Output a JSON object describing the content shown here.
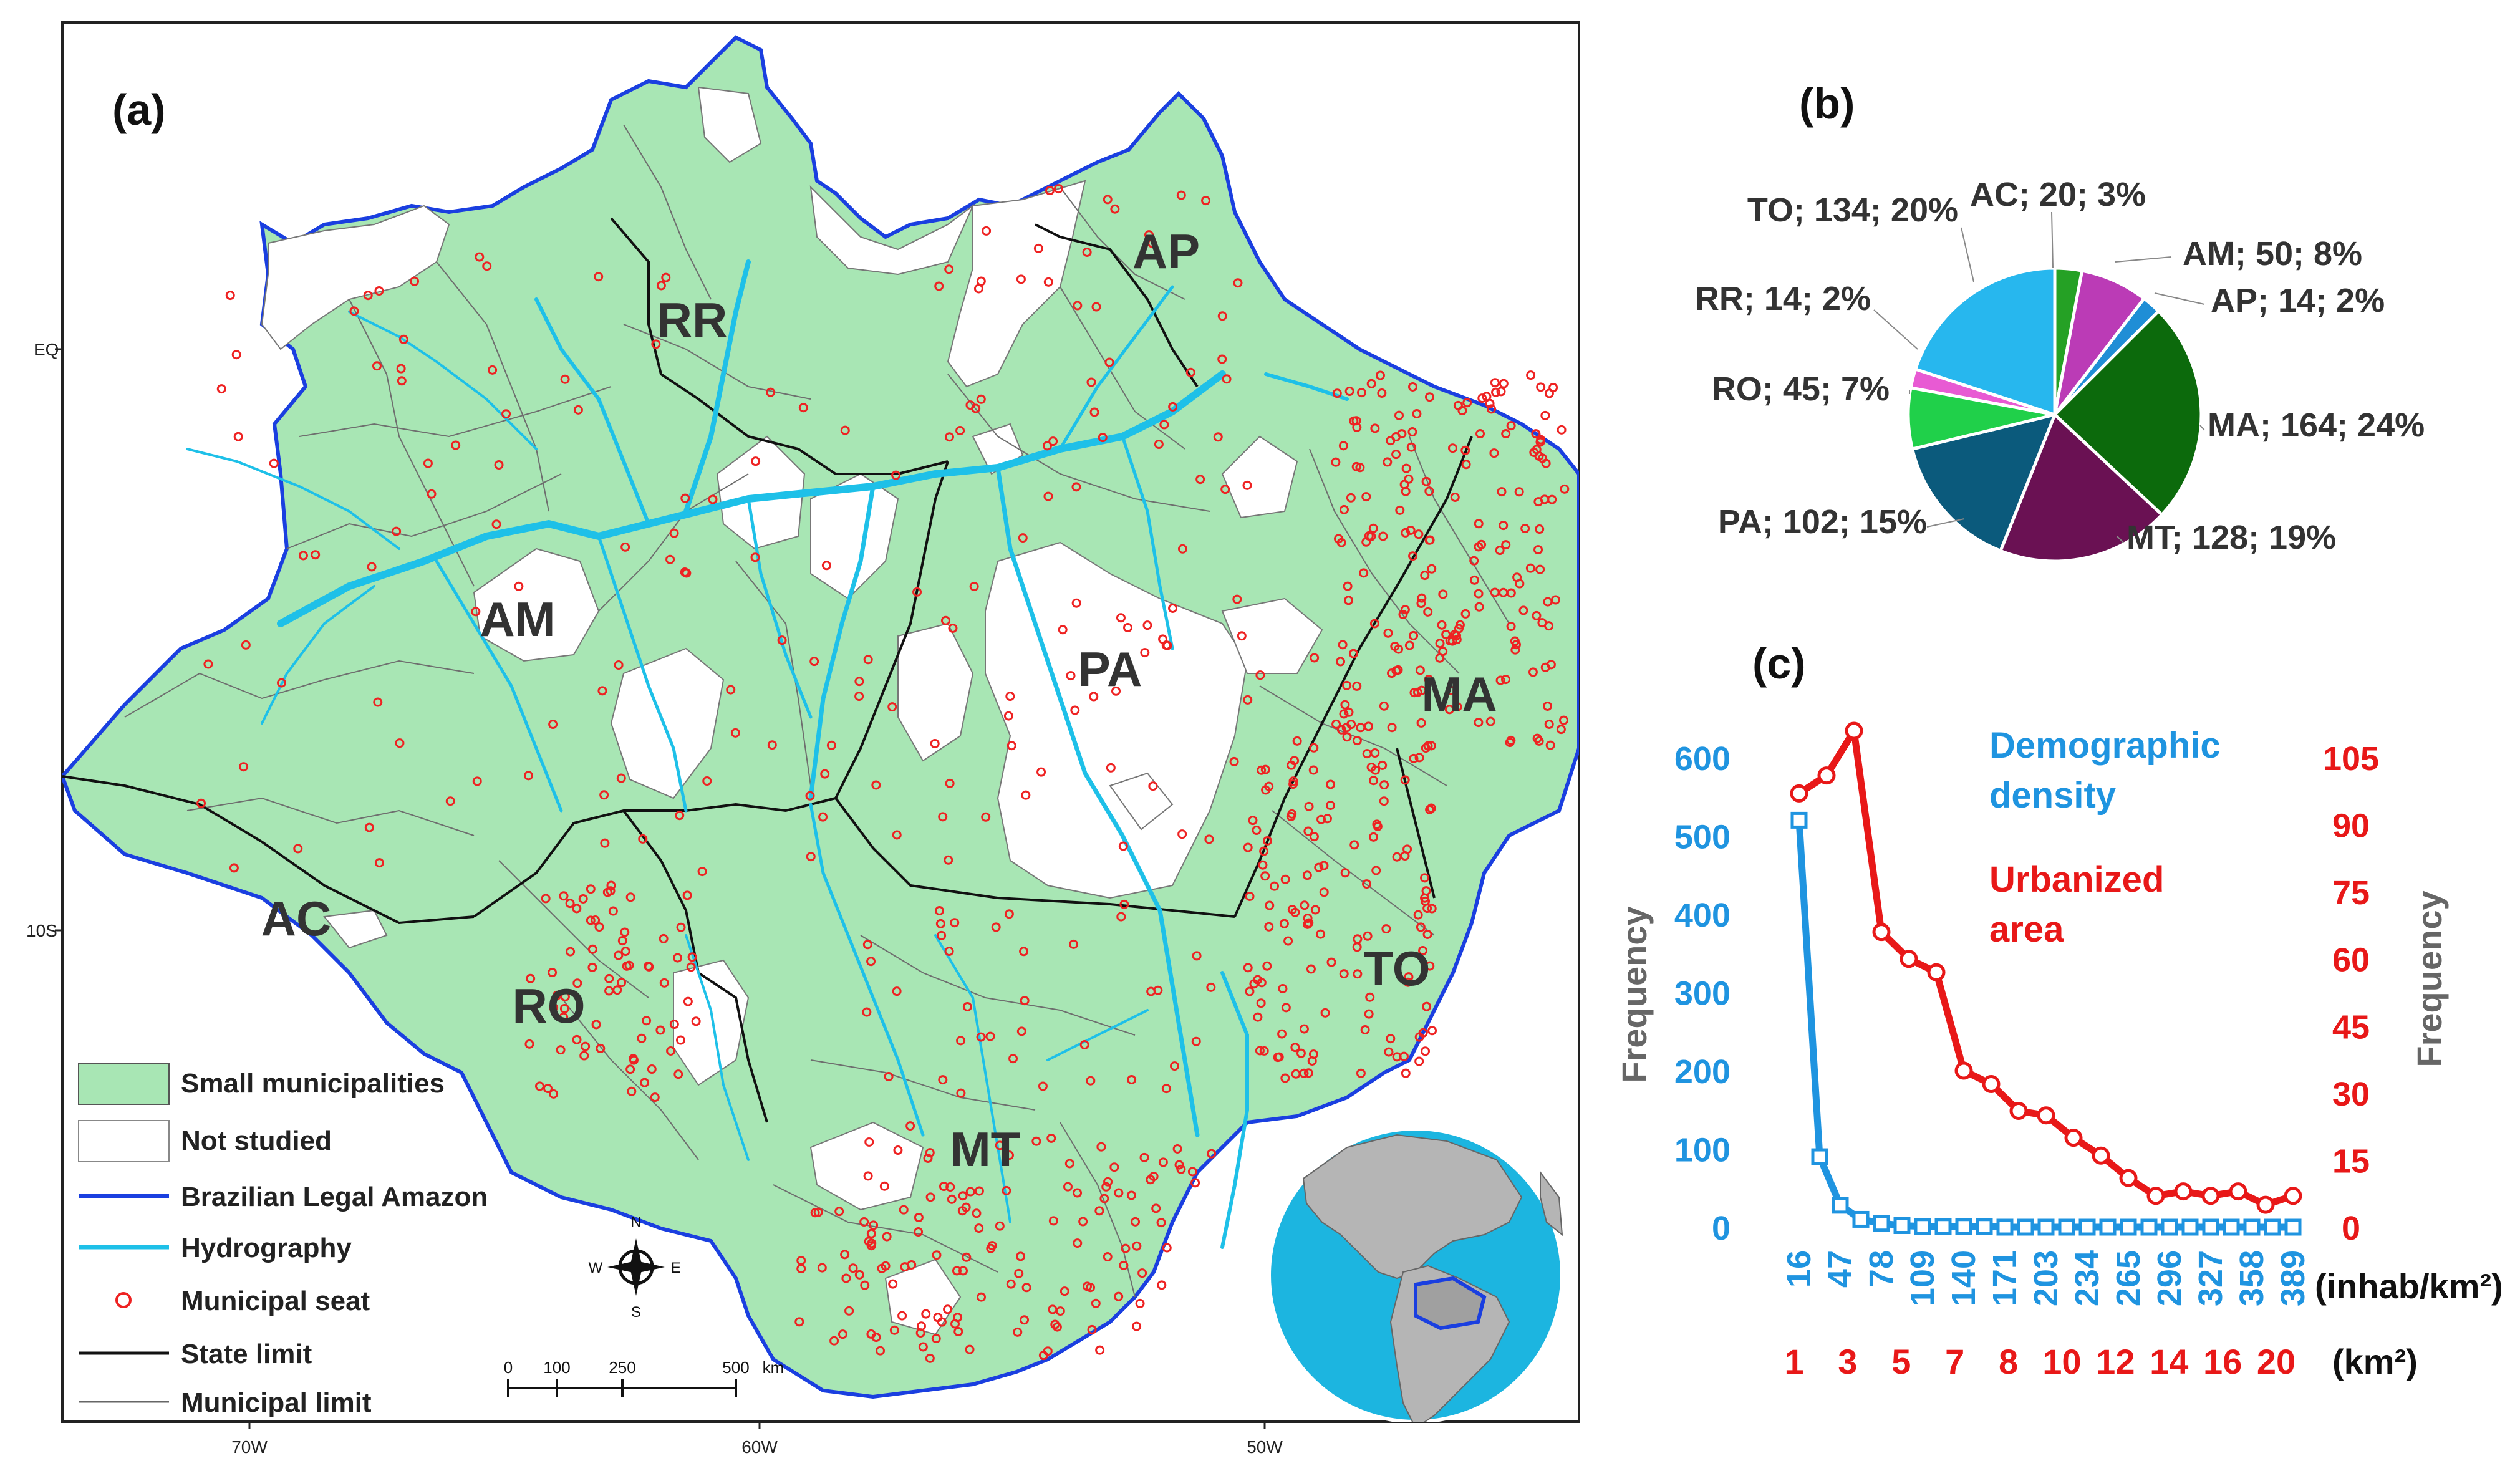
{
  "panels": {
    "a": "(a)",
    "b": "(b)",
    "c": "(c)"
  },
  "map": {
    "lat_labels": [
      "EQ",
      "10S"
    ],
    "lon_labels": [
      "70W",
      "60W",
      "50W"
    ],
    "state_labels": [
      "RR",
      "AP",
      "AM",
      "PA",
      "MA",
      "AC",
      "RO",
      "MT",
      "TO"
    ],
    "legend": [
      {
        "label": "Small municipalities",
        "symbol": "fill-green"
      },
      {
        "label": "Not studied",
        "symbol": "fill-white"
      },
      {
        "label": "Brazilian Legal Amazon",
        "symbol": "line-blue"
      },
      {
        "label": "Hydrography",
        "symbol": "line-cyan"
      },
      {
        "label": "Municipal seat",
        "symbol": "circle-red"
      },
      {
        "label": "State limit",
        "symbol": "line-black"
      },
      {
        "label": "Municipal limit",
        "symbol": "line-gray"
      }
    ],
    "compass": {
      "n": "N",
      "s": "S",
      "e": "E",
      "w": "W"
    },
    "scale_bar": {
      "ticks": [
        "0",
        "100",
        "250",
        "500"
      ],
      "unit": "km"
    },
    "colors": {
      "small": "#a8e6b4",
      "not_studied": "#ffffff",
      "boundary": "#1a3fe0",
      "hydro": "#1ec0e8",
      "seat": "#ee2222",
      "state": "#111111",
      "muni": "#666666",
      "ocean": "#1cb5e0"
    }
  },
  "chart_data": [
    {
      "type": "pie",
      "panel": "b",
      "slices": [
        {
          "label": "AC; 20; 3%",
          "state": "AC",
          "count": 20,
          "pct": 3,
          "color": "#25a125"
        },
        {
          "label": "AM; 50; 8%",
          "state": "AM",
          "count": 50,
          "pct": 8,
          "color": "#bb3bb6"
        },
        {
          "label": "AP; 14; 2%",
          "state": "AP",
          "count": 14,
          "pct": 2,
          "color": "#1f8ed6"
        },
        {
          "label": "MA; 164; 24%",
          "state": "MA",
          "count": 164,
          "pct": 24,
          "color": "#0c6a0c"
        },
        {
          "label": "MT; 128; 19%",
          "state": "MT",
          "count": 128,
          "pct": 19,
          "color": "#6a1153"
        },
        {
          "label": "PA; 102; 15%",
          "state": "PA",
          "count": 102,
          "pct": 15,
          "color": "#0b5a7c"
        },
        {
          "label": "RO; 45; 7%",
          "state": "RO",
          "count": 45,
          "pct": 7,
          "color": "#20d04a"
        },
        {
          "label": "RR; 14; 2%",
          "state": "RR",
          "count": 14,
          "pct": 2,
          "color": "#e85ad3"
        },
        {
          "label": "TO; 134; 20%",
          "state": "TO",
          "count": 134,
          "pct": 20,
          "color": "#27b7ee"
        }
      ]
    },
    {
      "type": "line",
      "panel": "c",
      "left_axis": {
        "label": "Frequency",
        "ticks": [
          0,
          100,
          200,
          300,
          400,
          500,
          600
        ],
        "ylim": [
          0,
          600
        ],
        "color": "#1f94e0"
      },
      "right_axis": {
        "label": "Frequency",
        "ticks": [
          0,
          15,
          30,
          45,
          60,
          75,
          90,
          105
        ],
        "ylim": [
          0,
          105
        ],
        "color": "#e81818"
      },
      "x_top_ticks": [
        "16",
        "47",
        "78",
        "109",
        "140",
        "171",
        "203",
        "234",
        "265",
        "296",
        "327",
        "358",
        "389"
      ],
      "x_top_unit": "(inhab/km²)",
      "x_bottom_ticks": [
        "1",
        "3",
        "5",
        "7",
        "8",
        "10",
        "12",
        "14",
        "16",
        "20"
      ],
      "x_bottom_unit": "(km²)",
      "series": [
        {
          "name": "Demographic density",
          "color": "#1f94e0",
          "marker": "square",
          "values": [
            520,
            90,
            28,
            10,
            5,
            2,
            1,
            1,
            1,
            1,
            0,
            0,
            0,
            0,
            0,
            0,
            0,
            0,
            0,
            0,
            0,
            0,
            0,
            0,
            0
          ]
        },
        {
          "name": "Urbanized area",
          "color": "#e81818",
          "marker": "circle",
          "values": [
            97,
            101,
            111,
            66,
            60,
            57,
            35,
            32,
            26,
            25,
            20,
            16,
            11,
            7,
            8,
            7,
            8,
            5,
            7
          ]
        }
      ]
    }
  ]
}
